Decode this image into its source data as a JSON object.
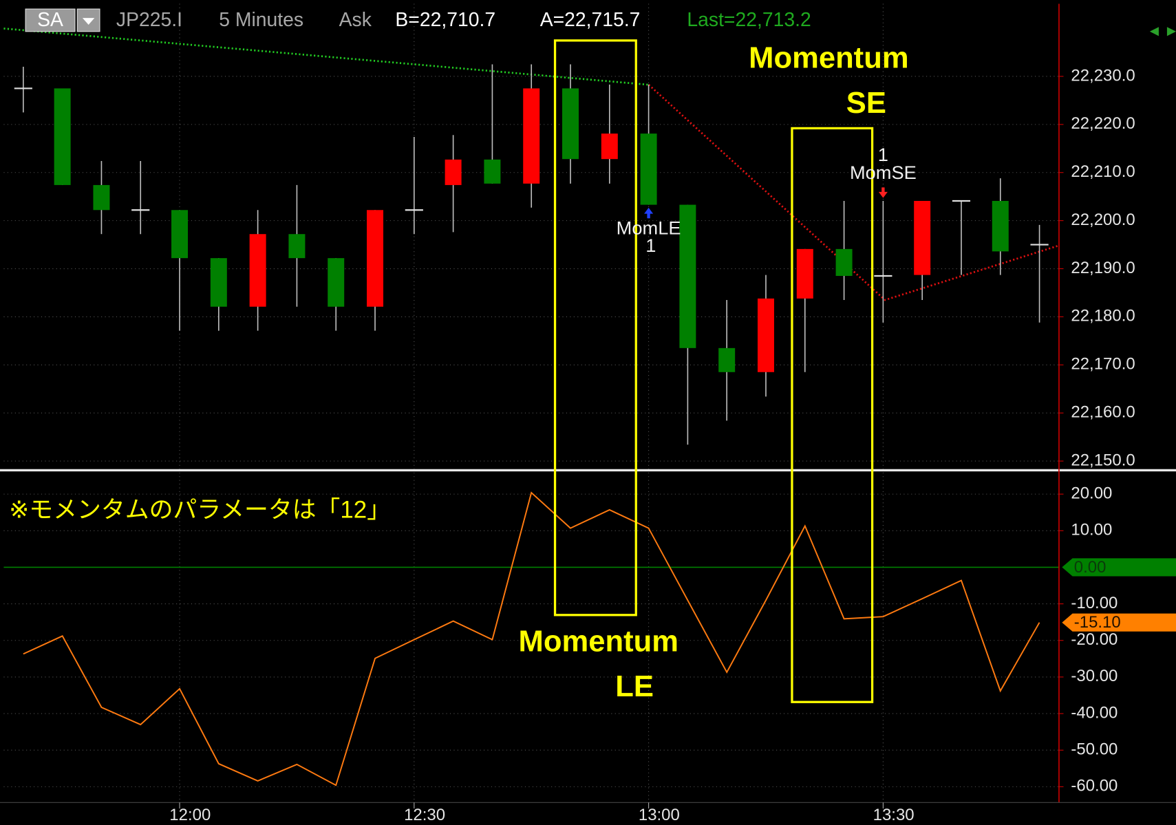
{
  "header": {
    "symbol_button": "SA",
    "symbol": "JP225.I",
    "interval": "5 Minutes",
    "side": "Ask",
    "bid": "B=22,710.7",
    "ask": "A=22,715.7",
    "last": "Last=22,713.2"
  },
  "annotations": {
    "momentum_se": [
      "Momentum",
      "SE"
    ],
    "momentum_le": [
      "Momentum",
      "LE"
    ],
    "note": "※モメンタムのパラメータは「12」"
  },
  "chart_data": [
    {
      "type": "candlestick",
      "categories": [
        null,
        null,
        null,
        null,
        "12:00",
        null,
        null,
        null,
        null,
        null,
        "12:30",
        null,
        null,
        null,
        null,
        null,
        "13:00",
        null,
        null,
        null,
        null,
        null,
        "13:30",
        null,
        null,
        null,
        null
      ],
      "open": [
        22227.5,
        22227.5,
        22207.4,
        22202.2,
        22202.2,
        22192.2,
        22182.1,
        22197.2,
        22192.2,
        22182.1,
        22202.2,
        22207.4,
        22212.7,
        22207.7,
        22227.5,
        22212.8,
        22218.1,
        22203.3,
        22173.5,
        22168.5,
        22183.8,
        22194.1,
        22188.5,
        22188.7,
        22204.1,
        22204.1,
        22195
      ],
      "high": [
        22232,
        22227.5,
        22212.4,
        22212.4,
        22202.2,
        22192.2,
        22202.2,
        22207.4,
        22192.2,
        22202.2,
        22217.4,
        22217.8,
        22232.5,
        22232.5,
        22232.5,
        22228.3,
        22228.3,
        22203.3,
        22183.5,
        22188.7,
        22194.1,
        22204.1,
        22204.1,
        22204.1,
        22204.1,
        22208.8,
        22199.1
      ],
      "low": [
        22222.5,
        22207.4,
        22197.2,
        22197.2,
        22177.1,
        22177.1,
        22177.1,
        22182.1,
        22177.1,
        22177.1,
        22197.2,
        22197.6,
        22207.7,
        22202.7,
        22207.7,
        22207.7,
        22203.3,
        22153.4,
        22158.4,
        22163.4,
        22168.5,
        22183.5,
        22178.8,
        22183.5,
        22188.7,
        22188.7,
        22178.8
      ],
      "close": [
        22227.5,
        22207.4,
        22202.2,
        22202.2,
        22192.2,
        22182.1,
        22197.2,
        22192.2,
        22182.1,
        22202.2,
        22202.2,
        22212.7,
        22207.7,
        22227.5,
        22212.8,
        22218.1,
        22203.3,
        22173.5,
        22168.5,
        22183.8,
        22194.1,
        22188.5,
        22188.5,
        22204.1,
        22204.1,
        22193.6,
        22195
      ],
      "up_color": "#ff0000",
      "down_color": "#008000",
      "doji_color": "#e0e0e0",
      "ylim": [
        22148.4,
        22245.1
      ],
      "yticks": [
        {
          "value": 22230,
          "label": "22,230.0"
        },
        {
          "value": 22220,
          "label": "22,220.0"
        },
        {
          "value": 22210,
          "label": "22,210.0"
        },
        {
          "value": 22200,
          "label": "22,200.0"
        },
        {
          "value": 22190,
          "label": "22,190.0"
        },
        {
          "value": 22180,
          "label": "22,180.0"
        },
        {
          "value": 22170,
          "label": "22,170.0"
        },
        {
          "value": 22160,
          "label": "22,160.0"
        },
        {
          "value": 22150,
          "label": "22,150.0"
        }
      ],
      "grid": true,
      "signals": [
        {
          "label": "MomLE",
          "count": 1,
          "index": 16,
          "direction": "long",
          "color": "#2040ff"
        },
        {
          "label": "MomSE",
          "count": 1,
          "index": 22,
          "direction": "short",
          "color": "#ff2020"
        }
      ]
    },
    {
      "type": "line",
      "series": [
        {
          "color": "#ff7a10",
          "values": [
            -23.7,
            -18.8,
            -38.3,
            -43.0,
            -33.2,
            -53.7,
            -58.4,
            -53.9,
            -59.6,
            -24.9,
            -19.8,
            -14.7,
            -19.8,
            20.4,
            10.7,
            15.7,
            10.7,
            -9.0,
            -28.7,
            -9.0,
            11.3,
            -14.1,
            -13.5,
            -8.6,
            -3.6,
            -33.8,
            -15.1
          ]
        }
      ],
      "ylim": [
        -63.9,
        25.5
      ],
      "yticks": [
        {
          "value": 20,
          "label": "20.00"
        },
        {
          "value": 10,
          "label": "10.00"
        },
        {
          "value": -10,
          "label": "-10.00"
        },
        {
          "value": -20,
          "label": "-20.00"
        },
        {
          "value": -30,
          "label": "-30.00"
        },
        {
          "value": -40,
          "label": "-40.00"
        },
        {
          "value": -50,
          "label": "-50.00"
        },
        {
          "value": -60,
          "label": "-60.00"
        }
      ],
      "grid": true,
      "value_markers": [
        {
          "value": 0,
          "label": "0.00",
          "color": "#008000",
          "line": true
        },
        {
          "value": -15.1,
          "label": "-15.10",
          "color": "#ff8000",
          "line": false
        }
      ]
    }
  ]
}
